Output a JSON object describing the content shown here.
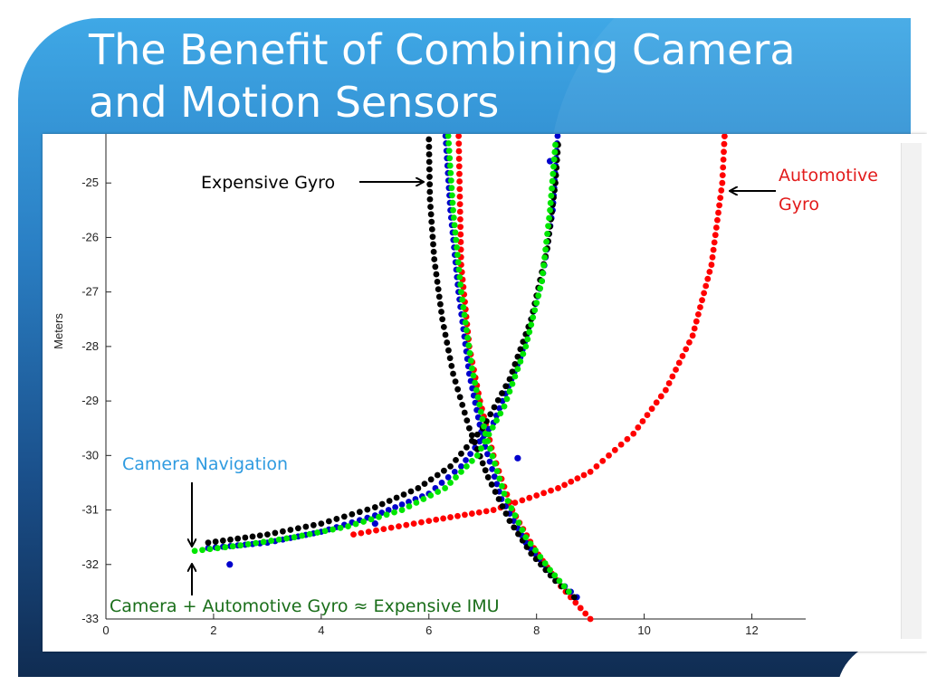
{
  "slide": {
    "title": "The Benefit of Combining Camera and Motion Sensors",
    "accent_colors": {
      "background_top": "#3fa8e6",
      "background_bottom": "#102c52"
    }
  },
  "chart_data": {
    "type": "scatter",
    "xlabel": "",
    "ylabel": "Meters",
    "xlim": [
      0,
      13
    ],
    "ylim": [
      -33,
      -24.1
    ],
    "x_ticks": [
      0,
      2,
      4,
      6,
      8,
      10,
      12
    ],
    "y_ticks": [
      -25,
      -26,
      -27,
      -28,
      -29,
      -30,
      -31,
      -32,
      -33
    ],
    "grid": false,
    "series": [
      {
        "color": "#ff0000",
        "segments": [
          [
            [
              6.55,
              -24.0
            ],
            [
              6.6,
              -26.5
            ],
            [
              6.75,
              -28.0
            ],
            [
              6.95,
              -29.0
            ],
            [
              7.2,
              -30.0
            ],
            [
              7.55,
              -31.0
            ],
            [
              7.95,
              -31.7
            ],
            [
              8.45,
              -32.4
            ],
            [
              9.0,
              -33.0
            ]
          ],
          [
            [
              4.6,
              -31.45
            ],
            [
              6.0,
              -31.2
            ],
            [
              7.2,
              -31.0
            ],
            [
              8.4,
              -30.6
            ],
            [
              9.0,
              -30.3
            ],
            [
              9.8,
              -29.6
            ],
            [
              10.4,
              -28.8
            ],
            [
              10.9,
              -27.8
            ],
            [
              11.25,
              -26.5
            ],
            [
              11.45,
              -25.0
            ],
            [
              11.5,
              -24.0
            ]
          ]
        ]
      },
      {
        "color": "#0000cc",
        "segments": [
          [
            [
              6.3,
              -24.0
            ],
            [
              6.4,
              -25.5
            ],
            [
              6.55,
              -27.0
            ],
            [
              6.75,
              -28.5
            ],
            [
              7.0,
              -29.7
            ],
            [
              7.35,
              -30.8
            ],
            [
              7.8,
              -31.6
            ],
            [
              8.3,
              -32.2
            ],
            [
              8.75,
              -32.6
            ]
          ],
          [
            [
              1.9,
              -31.7
            ],
            [
              3.0,
              -31.6
            ],
            [
              4.0,
              -31.4
            ],
            [
              5.0,
              -31.1
            ],
            [
              6.0,
              -30.7
            ],
            [
              6.6,
              -30.2
            ],
            [
              7.2,
              -29.4
            ],
            [
              7.7,
              -28.2
            ],
            [
              8.1,
              -26.8
            ],
            [
              8.3,
              -25.5
            ],
            [
              8.4,
              -24.0
            ]
          ]
        ],
        "outliers": [
          [
            2.3,
            -32.0
          ],
          [
            7.65,
            -30.05
          ],
          [
            8.25,
            -24.6
          ],
          [
            5.0,
            -31.25
          ]
        ]
      },
      {
        "color": "#000000",
        "segments": [
          [
            [
              6.0,
              -24.2
            ],
            [
              6.02,
              -25.3
            ],
            [
              6.1,
              -26.4
            ],
            [
              6.25,
              -27.5
            ],
            [
              6.45,
              -28.5
            ],
            [
              6.75,
              -29.5
            ],
            [
              7.1,
              -30.4
            ],
            [
              7.5,
              -31.2
            ],
            [
              7.9,
              -31.8
            ],
            [
              8.35,
              -32.3
            ],
            [
              8.7,
              -32.6
            ]
          ],
          [
            [
              1.9,
              -31.6
            ],
            [
              3.0,
              -31.45
            ],
            [
              4.0,
              -31.25
            ],
            [
              5.0,
              -30.95
            ],
            [
              5.8,
              -30.6
            ],
            [
              6.4,
              -30.2
            ],
            [
              7.0,
              -29.5
            ],
            [
              7.5,
              -28.6
            ],
            [
              7.9,
              -27.5
            ],
            [
              8.2,
              -26.2
            ],
            [
              8.35,
              -25.0
            ],
            [
              8.4,
              -24.3
            ]
          ]
        ]
      },
      {
        "color": "#00e600",
        "segments": [
          [
            [
              6.35,
              -24.0
            ],
            [
              6.45,
              -25.5
            ],
            [
              6.6,
              -27.0
            ],
            [
              6.8,
              -28.4
            ],
            [
              7.05,
              -29.6
            ],
            [
              7.4,
              -30.7
            ],
            [
              7.8,
              -31.5
            ],
            [
              8.25,
              -32.1
            ],
            [
              8.6,
              -32.5
            ]
          ],
          [
            [
              1.65,
              -31.75
            ],
            [
              2.5,
              -31.65
            ],
            [
              3.5,
              -31.5
            ],
            [
              4.5,
              -31.3
            ],
            [
              5.5,
              -31.0
            ],
            [
              6.3,
              -30.6
            ],
            [
              6.9,
              -30.0
            ],
            [
              7.4,
              -29.1
            ],
            [
              7.8,
              -28.0
            ],
            [
              8.1,
              -26.8
            ],
            [
              8.25,
              -25.5
            ],
            [
              8.35,
              -24.3
            ]
          ]
        ]
      }
    ],
    "annotations": {
      "expensive_gyro": "Expensive Gyro",
      "automotive_gyro_line1": "Automotive",
      "automotive_gyro_line2": "Gyro",
      "camera_navigation": "Camera Navigation",
      "combined": "Camera + Automotive Gyro ≈ Expensive IMU"
    },
    "annotation_colors": {
      "expensive_gyro": "#000000",
      "automotive_gyro": "#e21b1b",
      "camera_navigation": "#2f9be0",
      "combined": "#1a6e1a"
    }
  }
}
